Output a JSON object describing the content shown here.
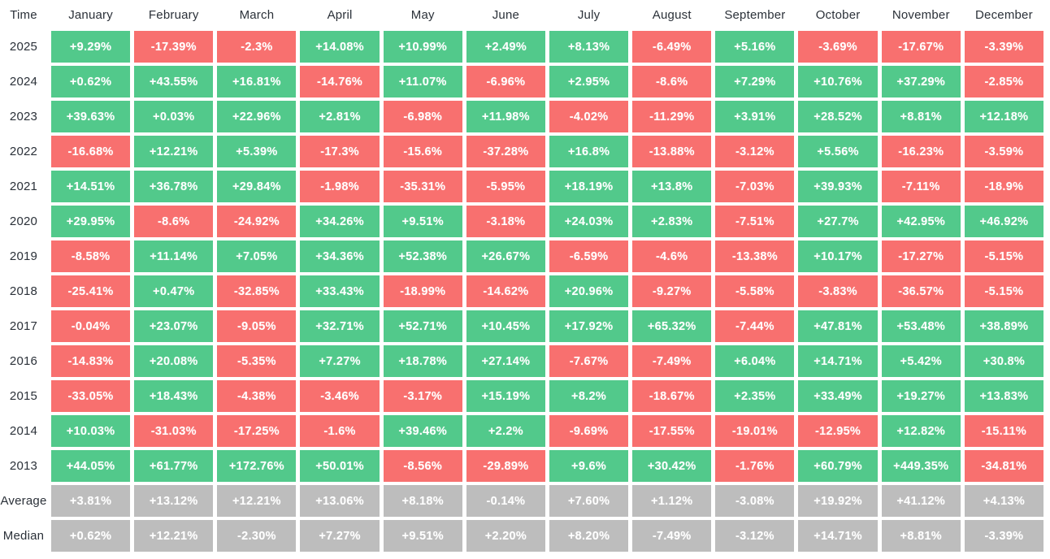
{
  "chart_data": {
    "type": "heatmap",
    "description": "Monthly returns (%) heatmap by year and month; green = positive, red = negative, gray = summary rows",
    "corner_label": "Time",
    "columns": [
      "January",
      "February",
      "March",
      "April",
      "May",
      "June",
      "July",
      "August",
      "September",
      "October",
      "November",
      "December"
    ],
    "rows": [
      {
        "label": "2025",
        "kind": "year",
        "values": [
          "+9.29%",
          "-17.39%",
          "-2.3%",
          "+14.08%",
          "+10.99%",
          "+2.49%",
          "+8.13%",
          "-6.49%",
          "+5.16%",
          "-3.69%",
          "-17.67%",
          "-3.39%"
        ]
      },
      {
        "label": "2024",
        "kind": "year",
        "values": [
          "+0.62%",
          "+43.55%",
          "+16.81%",
          "-14.76%",
          "+11.07%",
          "-6.96%",
          "+2.95%",
          "-8.6%",
          "+7.29%",
          "+10.76%",
          "+37.29%",
          "-2.85%"
        ]
      },
      {
        "label": "2023",
        "kind": "year",
        "values": [
          "+39.63%",
          "+0.03%",
          "+22.96%",
          "+2.81%",
          "-6.98%",
          "+11.98%",
          "-4.02%",
          "-11.29%",
          "+3.91%",
          "+28.52%",
          "+8.81%",
          "+12.18%"
        ]
      },
      {
        "label": "2022",
        "kind": "year",
        "values": [
          "-16.68%",
          "+12.21%",
          "+5.39%",
          "-17.3%",
          "-15.6%",
          "-37.28%",
          "+16.8%",
          "-13.88%",
          "-3.12%",
          "+5.56%",
          "-16.23%",
          "-3.59%"
        ]
      },
      {
        "label": "2021",
        "kind": "year",
        "values": [
          "+14.51%",
          "+36.78%",
          "+29.84%",
          "-1.98%",
          "-35.31%",
          "-5.95%",
          "+18.19%",
          "+13.8%",
          "-7.03%",
          "+39.93%",
          "-7.11%",
          "-18.9%"
        ]
      },
      {
        "label": "2020",
        "kind": "year",
        "values": [
          "+29.95%",
          "-8.6%",
          "-24.92%",
          "+34.26%",
          "+9.51%",
          "-3.18%",
          "+24.03%",
          "+2.83%",
          "-7.51%",
          "+27.7%",
          "+42.95%",
          "+46.92%"
        ]
      },
      {
        "label": "2019",
        "kind": "year",
        "values": [
          "-8.58%",
          "+11.14%",
          "+7.05%",
          "+34.36%",
          "+52.38%",
          "+26.67%",
          "-6.59%",
          "-4.6%",
          "-13.38%",
          "+10.17%",
          "-17.27%",
          "-5.15%"
        ]
      },
      {
        "label": "2018",
        "kind": "year",
        "values": [
          "-25.41%",
          "+0.47%",
          "-32.85%",
          "+33.43%",
          "-18.99%",
          "-14.62%",
          "+20.96%",
          "-9.27%",
          "-5.58%",
          "-3.83%",
          "-36.57%",
          "-5.15%"
        ]
      },
      {
        "label": "2017",
        "kind": "year",
        "values": [
          "-0.04%",
          "+23.07%",
          "-9.05%",
          "+32.71%",
          "+52.71%",
          "+10.45%",
          "+17.92%",
          "+65.32%",
          "-7.44%",
          "+47.81%",
          "+53.48%",
          "+38.89%"
        ]
      },
      {
        "label": "2016",
        "kind": "year",
        "values": [
          "-14.83%",
          "+20.08%",
          "-5.35%",
          "+7.27%",
          "+18.78%",
          "+27.14%",
          "-7.67%",
          "-7.49%",
          "+6.04%",
          "+14.71%",
          "+5.42%",
          "+30.8%"
        ]
      },
      {
        "label": "2015",
        "kind": "year",
        "values": [
          "-33.05%",
          "+18.43%",
          "-4.38%",
          "-3.46%",
          "-3.17%",
          "+15.19%",
          "+8.2%",
          "-18.67%",
          "+2.35%",
          "+33.49%",
          "+19.27%",
          "+13.83%"
        ]
      },
      {
        "label": "2014",
        "kind": "year",
        "values": [
          "+10.03%",
          "-31.03%",
          "-17.25%",
          "-1.6%",
          "+39.46%",
          "+2.2%",
          "-9.69%",
          "-17.55%",
          "-19.01%",
          "-12.95%",
          "+12.82%",
          "-15.11%"
        ]
      },
      {
        "label": "2013",
        "kind": "year",
        "values": [
          "+44.05%",
          "+61.77%",
          "+172.76%",
          "+50.01%",
          "-8.56%",
          "-29.89%",
          "+9.6%",
          "+30.42%",
          "-1.76%",
          "+60.79%",
          "+449.35%",
          "-34.81%"
        ]
      },
      {
        "label": "Average",
        "kind": "summary",
        "values": [
          "+3.81%",
          "+13.12%",
          "+12.21%",
          "+13.06%",
          "+8.18%",
          "-0.14%",
          "+7.60%",
          "+1.12%",
          "-3.08%",
          "+19.92%",
          "+41.12%",
          "+4.13%"
        ]
      },
      {
        "label": "Median",
        "kind": "summary",
        "values": [
          "+0.62%",
          "+12.21%",
          "-2.30%",
          "+7.27%",
          "+9.51%",
          "+2.20%",
          "+8.20%",
          "-7.49%",
          "-3.12%",
          "+14.71%",
          "+8.81%",
          "-3.39%"
        ]
      }
    ],
    "colors": {
      "positive": "#52c98b",
      "negative": "#f8706f",
      "summary": "#bdbdbd",
      "cell_text": "#ffffff",
      "label_text": "#2b3139",
      "background": "#ffffff"
    },
    "layout": {
      "grid": "off",
      "legend": "none",
      "first_column": "row labels",
      "header_row": "month names"
    }
  }
}
